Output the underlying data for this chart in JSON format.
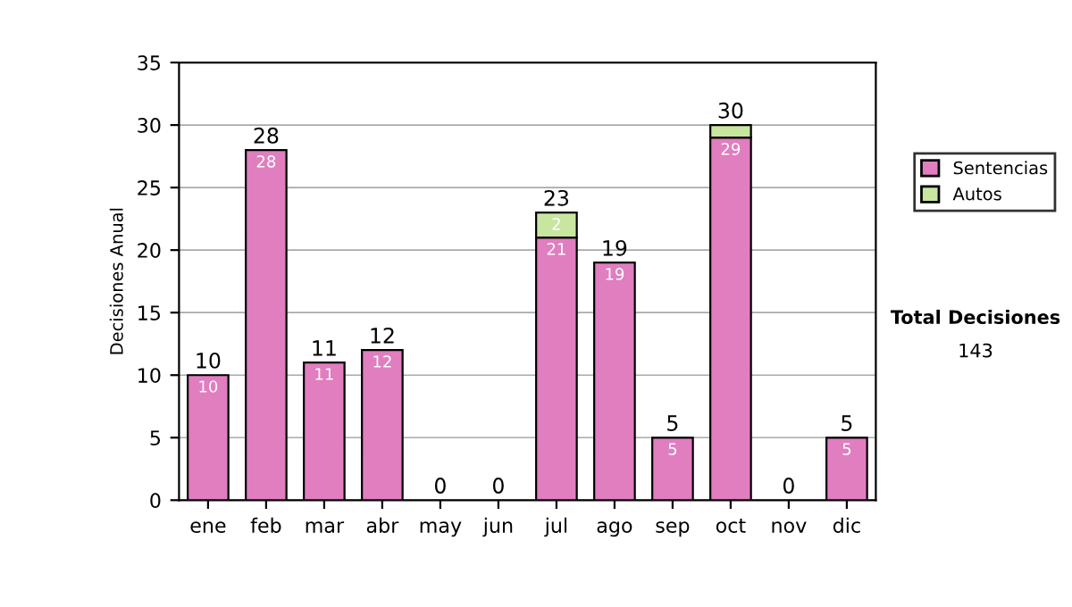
{
  "chart_data": {
    "type": "bar",
    "stacked": true,
    "ylabel": "Decisiones Anual",
    "categories": [
      "ene",
      "feb",
      "mar",
      "abr",
      "may",
      "jun",
      "jul",
      "ago",
      "sep",
      "oct",
      "nov",
      "dic"
    ],
    "series": [
      {
        "name": "Sentencias",
        "color": "#e07ec0",
        "values": [
          10,
          28,
          11,
          12,
          0,
          0,
          21,
          19,
          5,
          29,
          0,
          5
        ],
        "value_labels": [
          "10",
          "28",
          "11",
          "12",
          null,
          null,
          "21",
          "19",
          "5",
          "29",
          null,
          "5"
        ]
      },
      {
        "name": "Autos",
        "color": "#c8e6a0",
        "values": [
          0,
          0,
          0,
          0,
          0,
          0,
          2,
          0,
          0,
          1,
          0,
          0
        ],
        "value_labels": [
          null,
          null,
          null,
          null,
          null,
          null,
          "2",
          null,
          null,
          null,
          null,
          null
        ]
      }
    ],
    "totals": [
      "10",
      "28",
      "11",
      "12",
      "0",
      "0",
      "23",
      "19",
      "5",
      "30",
      "0",
      "5"
    ],
    "ylim": [
      0,
      35
    ],
    "yticks": [
      0,
      5,
      10,
      15,
      20,
      25,
      30,
      35
    ],
    "grid": "y",
    "legend": "right",
    "annotations": [
      "Total Decisiones",
      "143"
    ]
  }
}
